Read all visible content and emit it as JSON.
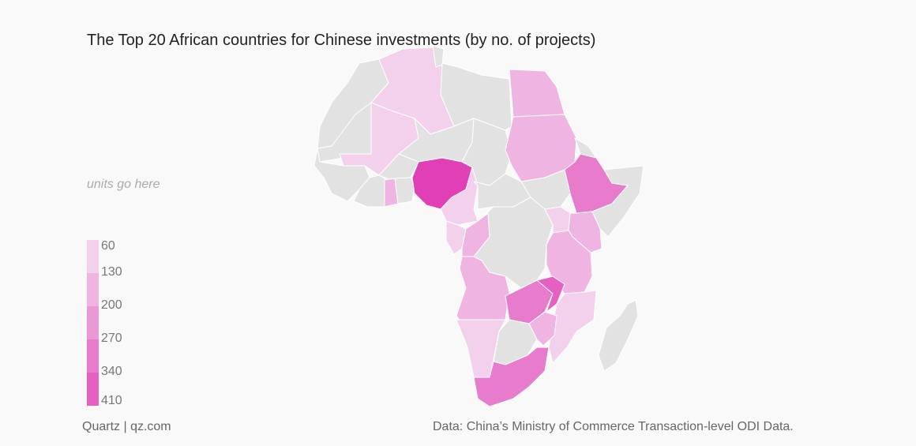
{
  "title": "The Top 20 African countries for Chinese investments (by no. of projects)",
  "units_note": "units go here",
  "legend": {
    "items": [
      {
        "label": "60",
        "color": "#f3d0ec"
      },
      {
        "label": "130",
        "color": "#efb4e1"
      },
      {
        "label": "200",
        "color": "#eb98d6"
      },
      {
        "label": "270",
        "color": "#e87ccc"
      },
      {
        "label": "340",
        "color": "#e460c1"
      },
      {
        "label": "410",
        "color": "#e03fb5"
      }
    ]
  },
  "colors": {
    "no_data": "#e2e2e2",
    "background": "#f9f9f9",
    "border": "#ffffff"
  },
  "footer": {
    "source": "Quartz | qz.com",
    "data_note": "Data: China’s Ministry of Commerce Transaction-level ODI Data."
  }
}
